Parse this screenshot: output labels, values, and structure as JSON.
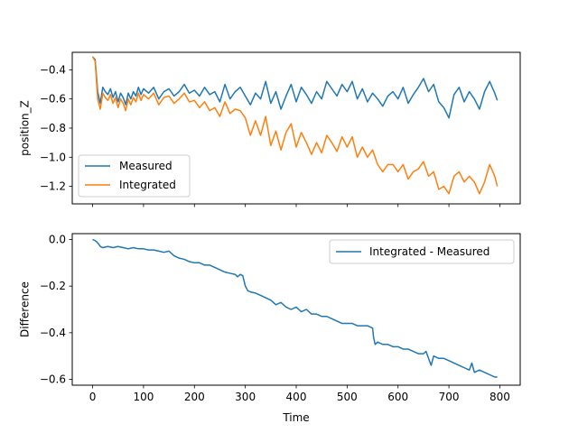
{
  "chart_data": [
    {
      "type": "line",
      "xlabel": "",
      "ylabel": "position_Z",
      "xlim": [
        -40,
        840
      ],
      "ylim": [
        -1.32,
        -0.28
      ],
      "xticks": [
        0,
        100,
        200,
        300,
        400,
        500,
        600,
        700,
        800
      ],
      "yticks": [
        -1.2,
        -1.0,
        -0.8,
        -0.6,
        -0.4
      ],
      "ytick_labels": [
        "−1.2",
        "−1.0",
        "−0.8",
        "−0.6",
        "−0.4"
      ],
      "legend_position": "lower-left",
      "series": [
        {
          "name": "Measured",
          "color": "#1f77b4",
          "x": [
            0,
            5,
            10,
            15,
            20,
            25,
            30,
            35,
            40,
            45,
            50,
            55,
            60,
            65,
            70,
            75,
            80,
            85,
            90,
            95,
            100,
            110,
            120,
            130,
            140,
            150,
            160,
            170,
            180,
            190,
            200,
            210,
            220,
            230,
            240,
            250,
            260,
            270,
            280,
            290,
            300,
            310,
            320,
            330,
            340,
            350,
            360,
            370,
            380,
            390,
            400,
            410,
            420,
            430,
            440,
            450,
            460,
            470,
            480,
            490,
            500,
            510,
            520,
            530,
            540,
            550,
            560,
            570,
            580,
            590,
            600,
            610,
            620,
            630,
            640,
            650,
            660,
            670,
            680,
            690,
            700,
            710,
            720,
            730,
            740,
            750,
            760,
            770,
            780,
            790,
            795
          ],
          "y": [
            -0.31,
            -0.33,
            -0.55,
            -0.63,
            -0.52,
            -0.55,
            -0.57,
            -0.53,
            -0.59,
            -0.55,
            -0.62,
            -0.56,
            -0.59,
            -0.64,
            -0.56,
            -0.6,
            -0.55,
            -0.58,
            -0.52,
            -0.57,
            -0.53,
            -0.56,
            -0.52,
            -0.6,
            -0.55,
            -0.53,
            -0.58,
            -0.55,
            -0.5,
            -0.56,
            -0.54,
            -0.58,
            -0.52,
            -0.57,
            -0.55,
            -0.62,
            -0.5,
            -0.6,
            -0.55,
            -0.52,
            -0.58,
            -0.64,
            -0.56,
            -0.6,
            -0.48,
            -0.63,
            -0.55,
            -0.67,
            -0.58,
            -0.5,
            -0.62,
            -0.52,
            -0.57,
            -0.63,
            -0.55,
            -0.6,
            -0.48,
            -0.53,
            -0.58,
            -0.5,
            -0.55,
            -0.48,
            -0.6,
            -0.53,
            -0.62,
            -0.56,
            -0.6,
            -0.65,
            -0.58,
            -0.55,
            -0.6,
            -0.52,
            -0.63,
            -0.57,
            -0.52,
            -0.46,
            -0.55,
            -0.5,
            -0.62,
            -0.66,
            -0.73,
            -0.57,
            -0.52,
            -0.62,
            -0.55,
            -0.6,
            -0.67,
            -0.55,
            -0.48,
            -0.56,
            -0.61
          ]
        },
        {
          "name": "Integrated",
          "color": "#ff7f0e",
          "x": [
            0,
            5,
            10,
            15,
            20,
            25,
            30,
            35,
            40,
            45,
            50,
            55,
            60,
            65,
            70,
            75,
            80,
            85,
            90,
            95,
            100,
            110,
            120,
            130,
            140,
            150,
            160,
            170,
            180,
            190,
            200,
            210,
            220,
            230,
            240,
            250,
            260,
            270,
            280,
            290,
            300,
            310,
            320,
            330,
            340,
            350,
            360,
            370,
            380,
            390,
            400,
            410,
            420,
            430,
            440,
            450,
            460,
            470,
            480,
            490,
            500,
            510,
            520,
            530,
            540,
            550,
            560,
            570,
            580,
            590,
            600,
            610,
            620,
            630,
            640,
            650,
            660,
            670,
            680,
            690,
            700,
            710,
            720,
            730,
            740,
            750,
            760,
            770,
            780,
            790,
            795
          ],
          "y": [
            -0.31,
            -0.34,
            -0.6,
            -0.67,
            -0.56,
            -0.59,
            -0.61,
            -0.57,
            -0.63,
            -0.59,
            -0.66,
            -0.6,
            -0.63,
            -0.68,
            -0.6,
            -0.64,
            -0.59,
            -0.62,
            -0.56,
            -0.61,
            -0.57,
            -0.6,
            -0.56,
            -0.64,
            -0.59,
            -0.58,
            -0.63,
            -0.6,
            -0.56,
            -0.62,
            -0.61,
            -0.66,
            -0.62,
            -0.68,
            -0.66,
            -0.72,
            -0.62,
            -0.7,
            -0.67,
            -0.68,
            -0.73,
            -0.85,
            -0.75,
            -0.85,
            -0.72,
            -0.92,
            -0.82,
            -0.95,
            -0.83,
            -0.77,
            -0.93,
            -0.83,
            -0.9,
            -0.98,
            -0.9,
            -0.97,
            -0.85,
            -0.9,
            -0.96,
            -0.86,
            -0.93,
            -0.86,
            -1.0,
            -0.93,
            -1.0,
            -0.95,
            -1.05,
            -1.1,
            -1.05,
            -1.05,
            -1.1,
            -1.05,
            -1.15,
            -1.1,
            -1.08,
            -1.03,
            -1.13,
            -1.1,
            -1.22,
            -1.2,
            -1.25,
            -1.13,
            -1.1,
            -1.17,
            -1.13,
            -1.17,
            -1.25,
            -1.17,
            -1.05,
            -1.13,
            -1.2
          ]
        }
      ]
    },
    {
      "type": "line",
      "xlabel": "Time",
      "ylabel": "Difference",
      "xlim": [
        -40,
        840
      ],
      "ylim": [
        -0.625,
        0.025
      ],
      "xticks": [
        0,
        100,
        200,
        300,
        400,
        500,
        600,
        700,
        800
      ],
      "xtick_labels": [
        "0",
        "100",
        "200",
        "300",
        "400",
        "500",
        "600",
        "700",
        "800"
      ],
      "yticks": [
        0.0,
        -0.2,
        -0.4,
        -0.6
      ],
      "ytick_labels": [
        "0.0",
        "−0.2",
        "−0.4",
        "−0.6"
      ],
      "legend_position": "upper-right",
      "series": [
        {
          "name": "Integrated - Measured",
          "color": "#1f77b4",
          "x": [
            0,
            5,
            8,
            12,
            15,
            20,
            30,
            40,
            50,
            60,
            70,
            80,
            90,
            100,
            110,
            120,
            130,
            140,
            150,
            160,
            170,
            180,
            190,
            200,
            210,
            220,
            230,
            240,
            250,
            260,
            270,
            280,
            285,
            290,
            295,
            300,
            305,
            310,
            320,
            330,
            340,
            350,
            360,
            370,
            380,
            390,
            400,
            410,
            420,
            430,
            440,
            450,
            460,
            470,
            480,
            490,
            500,
            510,
            520,
            530,
            540,
            550,
            552,
            555,
            560,
            570,
            580,
            590,
            600,
            610,
            620,
            630,
            640,
            650,
            655,
            660,
            665,
            670,
            680,
            690,
            700,
            710,
            720,
            730,
            740,
            745,
            750,
            760,
            770,
            780,
            790,
            795
          ],
          "y": [
            0.0,
            -0.005,
            -0.01,
            -0.02,
            -0.03,
            -0.035,
            -0.03,
            -0.035,
            -0.03,
            -0.035,
            -0.04,
            -0.035,
            -0.04,
            -0.04,
            -0.045,
            -0.045,
            -0.05,
            -0.055,
            -0.05,
            -0.07,
            -0.08,
            -0.085,
            -0.095,
            -0.1,
            -0.1,
            -0.11,
            -0.11,
            -0.12,
            -0.13,
            -0.14,
            -0.145,
            -0.15,
            -0.16,
            -0.15,
            -0.155,
            -0.2,
            -0.22,
            -0.225,
            -0.23,
            -0.24,
            -0.25,
            -0.26,
            -0.28,
            -0.27,
            -0.29,
            -0.3,
            -0.29,
            -0.31,
            -0.3,
            -0.32,
            -0.32,
            -0.33,
            -0.33,
            -0.34,
            -0.35,
            -0.36,
            -0.36,
            -0.36,
            -0.37,
            -0.37,
            -0.37,
            -0.38,
            -0.42,
            -0.45,
            -0.44,
            -0.45,
            -0.45,
            -0.46,
            -0.46,
            -0.47,
            -0.47,
            -0.48,
            -0.49,
            -0.49,
            -0.48,
            -0.51,
            -0.54,
            -0.5,
            -0.51,
            -0.51,
            -0.52,
            -0.53,
            -0.54,
            -0.55,
            -0.56,
            -0.53,
            -0.57,
            -0.56,
            -0.57,
            -0.58,
            -0.59,
            -0.59
          ]
        }
      ]
    }
  ]
}
